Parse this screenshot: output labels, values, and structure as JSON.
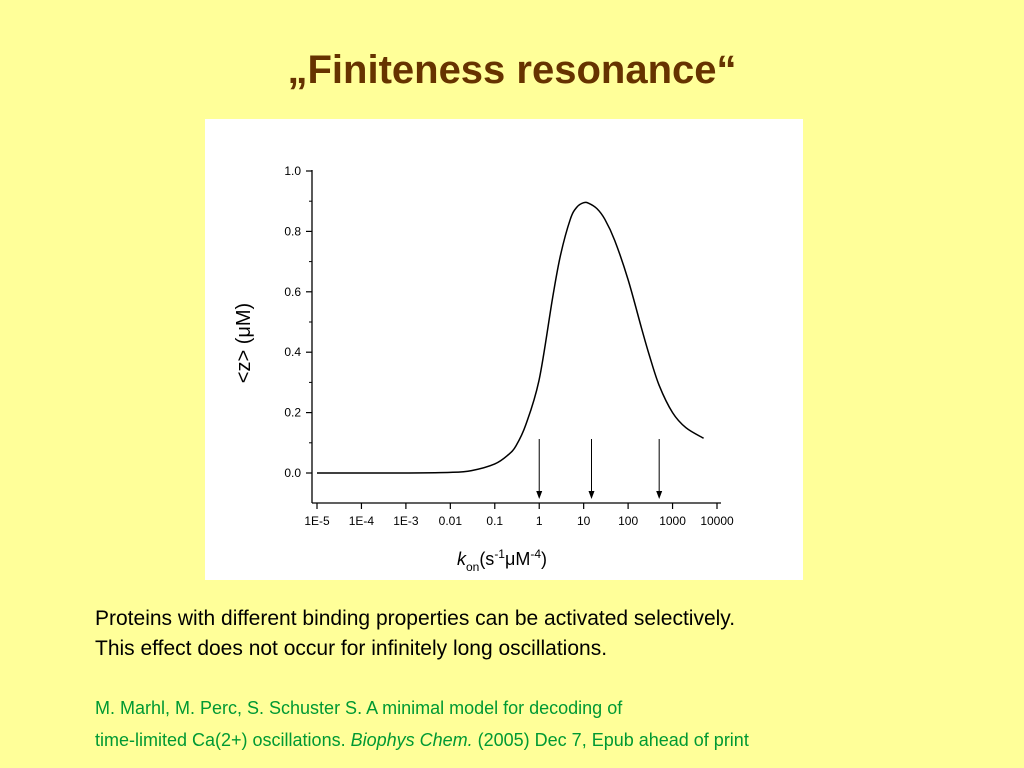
{
  "slide": {
    "title": "„Finiteness resonance“",
    "body_lines": [
      "Proteins with different binding properties can be activated selectively.",
      "This effect does not occur for infinitely long oscillations."
    ],
    "citation": {
      "line1": "M. Marhl, M. Perc, S. Schuster S. A minimal model for decoding of",
      "line2_pre": "time-limited Ca(2+) oscillations. ",
      "journal": "Biophys Chem.",
      "line2_post": " (2005) Dec 7, Epub ahead of print"
    }
  },
  "chart_data": {
    "type": "line",
    "xscale": "log",
    "xlim": [
      1e-05,
      10000
    ],
    "ylim": [
      0.0,
      1.0
    ],
    "xticks": [
      "1E-5",
      "1E-4",
      "1E-3",
      "0.01",
      "0.1",
      "1",
      "10",
      "100",
      "1000",
      "10000"
    ],
    "yticks": [
      "0.0",
      "0.2",
      "0.4",
      "0.6",
      "0.8",
      "1.0"
    ],
    "ylabel": "<z> (μM)",
    "xlabel": {
      "k": "k",
      "sub": "on",
      "open": "(s",
      "sup1": "-1",
      "mu": "μM",
      "sup2": "-4",
      "close": ")"
    },
    "series": [
      {
        "x": [
          1e-05,
          0.0001,
          0.001,
          0.01,
          0.03,
          0.1,
          0.2,
          0.3,
          0.5,
          1,
          2,
          3,
          5,
          7,
          10,
          13,
          20,
          30,
          50,
          100,
          200,
          300,
          500,
          1000,
          2000,
          5000
        ],
        "y": [
          0.0,
          0.0,
          0.0,
          0.002,
          0.008,
          0.03,
          0.06,
          0.09,
          0.16,
          0.31,
          0.58,
          0.72,
          0.84,
          0.88,
          0.895,
          0.893,
          0.875,
          0.84,
          0.77,
          0.64,
          0.48,
          0.39,
          0.29,
          0.2,
          0.15,
          0.115
        ]
      }
    ],
    "arrows_at_x": [
      1,
      15,
      500
    ],
    "grid": false,
    "legend": "none"
  }
}
